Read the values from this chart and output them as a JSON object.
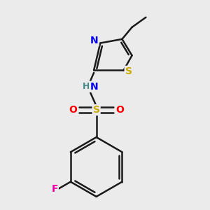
{
  "bg_color": "#ebebeb",
  "bond_color": "#1a1a1a",
  "bond_width": 1.8,
  "atom_colors": {
    "N": "#0000ee",
    "S_thio": "#ccaa00",
    "S_sulf": "#ccaa00",
    "O": "#ff0000",
    "F": "#ee00aa",
    "H": "#448888",
    "C": "#1a1a1a"
  },
  "font_size": 10
}
